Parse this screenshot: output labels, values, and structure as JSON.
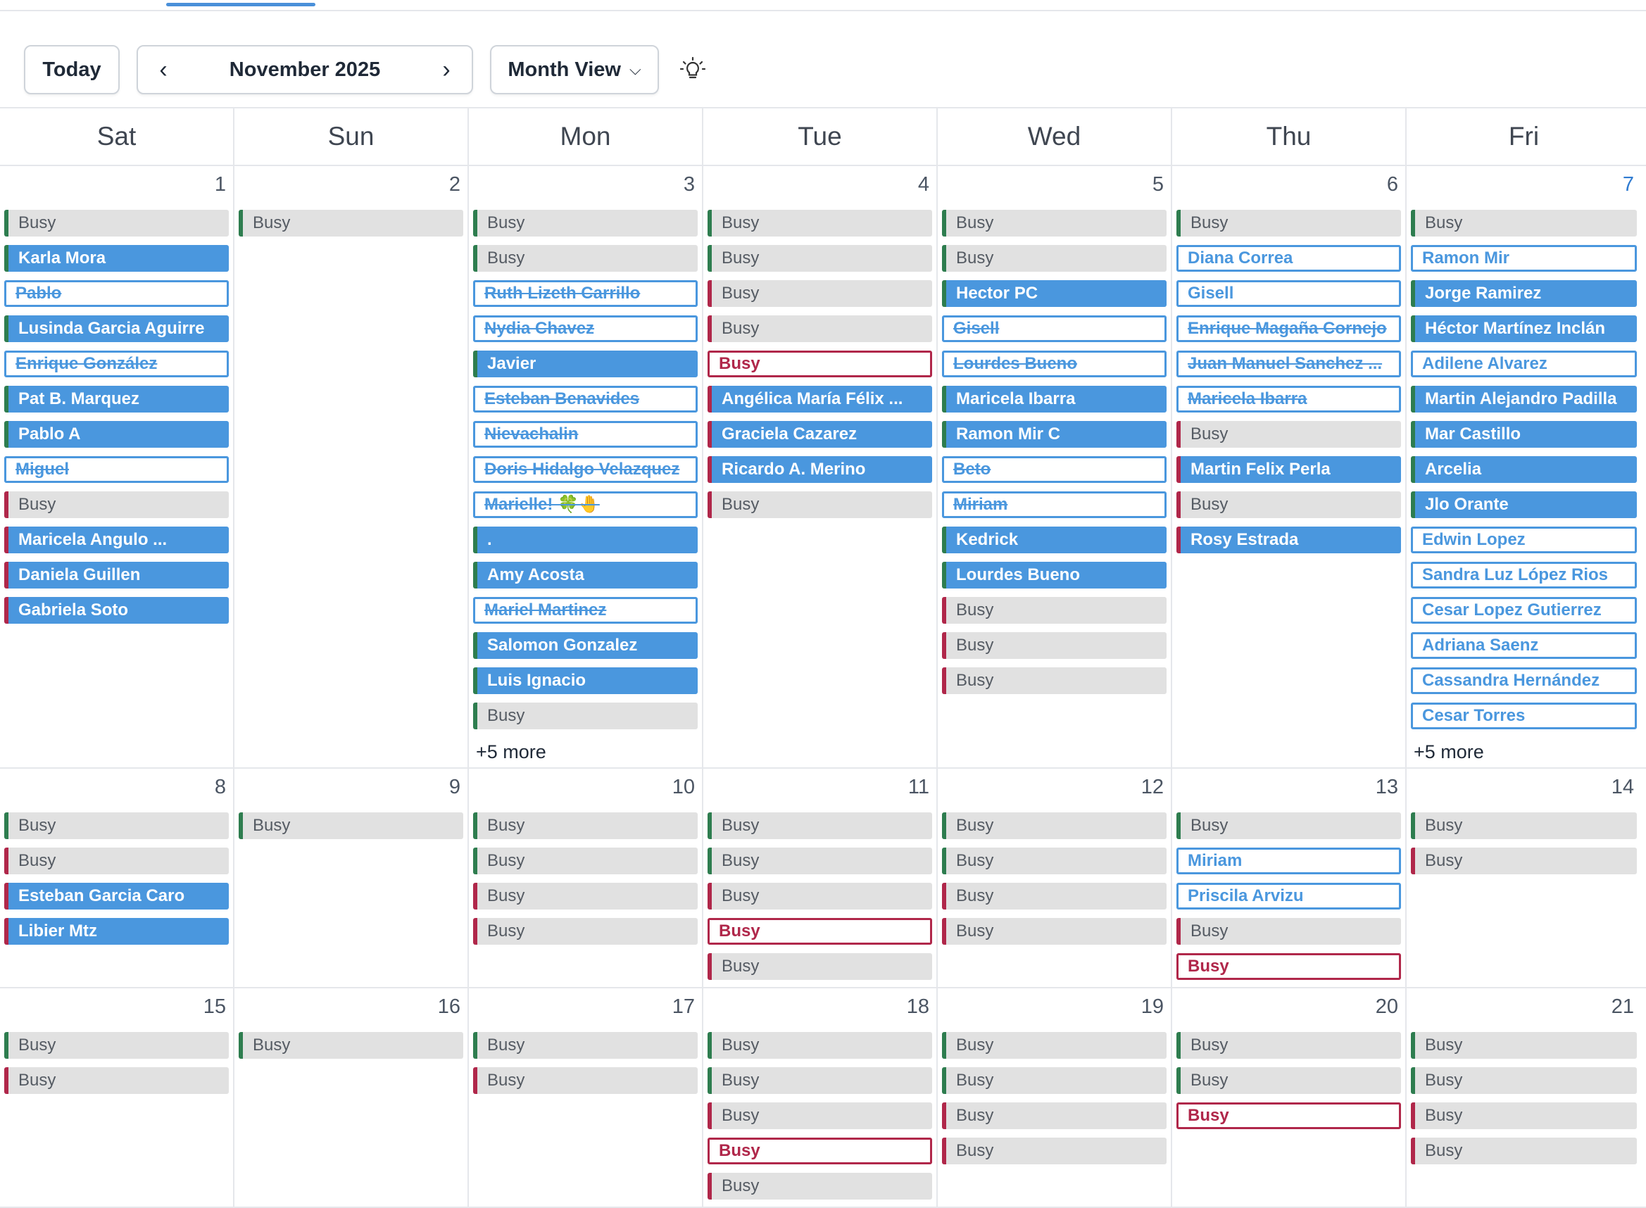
{
  "toolbar": {
    "today_label": "Today",
    "month_label": "November 2025",
    "prev_icon": "chevron-left-icon",
    "next_icon": "chevron-right-icon",
    "view_label": "Month View",
    "theme_icon": "lightbulb-icon"
  },
  "colors": {
    "accent_blue": "#4a97de",
    "busy_gray": "#e1e1e1",
    "green_bar": "#2e7d4f",
    "red_bar": "#b0274a",
    "today_blue": "#2f7bd1"
  },
  "weekdays": [
    "Sat",
    "Sun",
    "Mon",
    "Tue",
    "Wed",
    "Thu",
    "Fri"
  ],
  "weeks": [
    {
      "days": [
        {
          "num": "1",
          "events": [
            {
              "label": "Busy",
              "style": "busy",
              "bar": "green"
            },
            {
              "label": "Karla Mora",
              "style": "solid",
              "bar": "green"
            },
            {
              "label": "Pablo",
              "style": "outline",
              "struck": true
            },
            {
              "label": "Lusinda Garcia Aguirre",
              "style": "solid",
              "bar": "green"
            },
            {
              "label": "Enrique González",
              "style": "outline",
              "struck": true
            },
            {
              "label": "Pat B. Marquez",
              "style": "solid",
              "bar": "green"
            },
            {
              "label": "Pablo A",
              "style": "solid",
              "bar": "green"
            },
            {
              "label": "Miguel",
              "style": "outline",
              "struck": true
            },
            {
              "label": "Busy",
              "style": "busy",
              "bar": "red"
            },
            {
              "label": "Maricela Angulo ...",
              "style": "solid",
              "bar": "red"
            },
            {
              "label": "Daniela Guillen",
              "style": "solid",
              "bar": "red"
            },
            {
              "label": "Gabriela Soto",
              "style": "solid",
              "bar": "red"
            }
          ]
        },
        {
          "num": "2",
          "events": [
            {
              "label": "Busy",
              "style": "busy",
              "bar": "green"
            }
          ]
        },
        {
          "num": "3",
          "more": "+5 more",
          "events": [
            {
              "label": "Busy",
              "style": "busy",
              "bar": "green"
            },
            {
              "label": "Busy",
              "style": "busy",
              "bar": "green"
            },
            {
              "label": "Ruth Lizeth Carrillo",
              "style": "outline",
              "struck": true
            },
            {
              "label": "Nydia Chavez",
              "style": "outline",
              "struck": true
            },
            {
              "label": "Javier",
              "style": "solid",
              "bar": "green"
            },
            {
              "label": "Esteban Benavides",
              "style": "outline",
              "struck": true
            },
            {
              "label": "Nievachalin",
              "style": "outline",
              "struck": true
            },
            {
              "label": "Doris Hidalgo Velazquez",
              "style": "outline",
              "struck": true
            },
            {
              "label": "Marielle! 🍀🤚",
              "style": "outline",
              "struck": true
            },
            {
              "label": ".",
              "style": "solid",
              "bar": "green"
            },
            {
              "label": "Amy Acosta",
              "style": "solid",
              "bar": "green"
            },
            {
              "label": "Mariel Martinez",
              "style": "outline",
              "struck": true
            },
            {
              "label": "Salomon Gonzalez",
              "style": "solid",
              "bar": "green"
            },
            {
              "label": "Luis Ignacio",
              "style": "solid",
              "bar": "green"
            },
            {
              "label": "Busy",
              "style": "busy",
              "bar": "green"
            }
          ]
        },
        {
          "num": "4",
          "events": [
            {
              "label": "Busy",
              "style": "busy",
              "bar": "green"
            },
            {
              "label": "Busy",
              "style": "busy",
              "bar": "green"
            },
            {
              "label": "Busy",
              "style": "busy",
              "bar": "red"
            },
            {
              "label": "Busy",
              "style": "busy",
              "bar": "red"
            },
            {
              "label": "Busy",
              "style": "busy-outline"
            },
            {
              "label": "Angélica María Félix ...",
              "style": "solid",
              "bar": "red"
            },
            {
              "label": "Graciela Cazarez",
              "style": "solid",
              "bar": "red"
            },
            {
              "label": "Ricardo A. Merino",
              "style": "solid",
              "bar": "red"
            },
            {
              "label": "Busy",
              "style": "busy",
              "bar": "red"
            }
          ]
        },
        {
          "num": "5",
          "events": [
            {
              "label": "Busy",
              "style": "busy",
              "bar": "green"
            },
            {
              "label": "Busy",
              "style": "busy",
              "bar": "green"
            },
            {
              "label": "Hector PC",
              "style": "solid",
              "bar": "green"
            },
            {
              "label": "Gisell",
              "style": "outline",
              "struck": true
            },
            {
              "label": "Lourdes Bueno",
              "style": "outline",
              "struck": true
            },
            {
              "label": "Maricela Ibarra",
              "style": "solid",
              "bar": "green"
            },
            {
              "label": "Ramon Mir C",
              "style": "solid",
              "bar": "green"
            },
            {
              "label": "Beto",
              "style": "outline",
              "struck": true
            },
            {
              "label": "Miriam",
              "style": "outline",
              "struck": true
            },
            {
              "label": "Kedrick",
              "style": "solid",
              "bar": "green"
            },
            {
              "label": "Lourdes Bueno",
              "style": "solid",
              "bar": "green"
            },
            {
              "label": "Busy",
              "style": "busy",
              "bar": "red"
            },
            {
              "label": "Busy",
              "style": "busy",
              "bar": "red"
            },
            {
              "label": "Busy",
              "style": "busy",
              "bar": "red"
            }
          ]
        },
        {
          "num": "6",
          "events": [
            {
              "label": "Busy",
              "style": "busy",
              "bar": "green"
            },
            {
              "label": "Diana Correa",
              "style": "outline"
            },
            {
              "label": "Gisell",
              "style": "outline"
            },
            {
              "label": "Enrique Magaña Cornejo",
              "style": "outline",
              "struck": true
            },
            {
              "label": "Juan Manuel Sanchez ...",
              "style": "outline",
              "struck": true
            },
            {
              "label": "Maricela Ibarra",
              "style": "outline",
              "struck": true
            },
            {
              "label": "Busy",
              "style": "busy",
              "bar": "red"
            },
            {
              "label": "Martin Felix Perla",
              "style": "solid",
              "bar": "red"
            },
            {
              "label": "Busy",
              "style": "busy",
              "bar": "red"
            },
            {
              "label": "Rosy Estrada",
              "style": "solid",
              "bar": "red"
            }
          ]
        },
        {
          "num": "7",
          "today": true,
          "more": "+5 more",
          "events": [
            {
              "label": "Busy",
              "style": "busy",
              "bar": "green"
            },
            {
              "label": "Ramon Mir",
              "style": "outline"
            },
            {
              "label": "Jorge Ramirez",
              "style": "solid",
              "bar": "green"
            },
            {
              "label": "Héctor Martínez Inclán",
              "style": "solid",
              "bar": "green"
            },
            {
              "label": "Adilene Alvarez",
              "style": "outline"
            },
            {
              "label": "Martin Alejandro Padilla",
              "style": "solid",
              "bar": "green"
            },
            {
              "label": "Mar Castillo",
              "style": "solid",
              "bar": "green"
            },
            {
              "label": "Arcelia",
              "style": "solid",
              "bar": "green"
            },
            {
              "label": "Jlo Orante",
              "style": "solid",
              "bar": "green"
            },
            {
              "label": "Edwin Lopez",
              "style": "outline"
            },
            {
              "label": "Sandra Luz López Rios",
              "style": "outline"
            },
            {
              "label": "Cesar Lopez Gutierrez",
              "style": "outline"
            },
            {
              "label": "Adriana Saenz",
              "style": "outline"
            },
            {
              "label": "Cassandra Hernández",
              "style": "outline"
            },
            {
              "label": "Cesar Torres",
              "style": "outline"
            }
          ]
        }
      ]
    },
    {
      "days": [
        {
          "num": "8",
          "events": [
            {
              "label": "Busy",
              "style": "busy",
              "bar": "green"
            },
            {
              "label": "Busy",
              "style": "busy",
              "bar": "red"
            },
            {
              "label": "Esteban Garcia Caro",
              "style": "solid",
              "bar": "red"
            },
            {
              "label": "Libier Mtz",
              "style": "solid",
              "bar": "red"
            }
          ]
        },
        {
          "num": "9",
          "events": [
            {
              "label": "Busy",
              "style": "busy",
              "bar": "green"
            }
          ]
        },
        {
          "num": "10",
          "events": [
            {
              "label": "Busy",
              "style": "busy",
              "bar": "green"
            },
            {
              "label": "Busy",
              "style": "busy",
              "bar": "green"
            },
            {
              "label": "Busy",
              "style": "busy",
              "bar": "red"
            },
            {
              "label": "Busy",
              "style": "busy",
              "bar": "red"
            }
          ]
        },
        {
          "num": "11",
          "events": [
            {
              "label": "Busy",
              "style": "busy",
              "bar": "green"
            },
            {
              "label": "Busy",
              "style": "busy",
              "bar": "green"
            },
            {
              "label": "Busy",
              "style": "busy",
              "bar": "red"
            },
            {
              "label": "Busy",
              "style": "busy-outline"
            },
            {
              "label": "Busy",
              "style": "busy",
              "bar": "red"
            }
          ]
        },
        {
          "num": "12",
          "events": [
            {
              "label": "Busy",
              "style": "busy",
              "bar": "green"
            },
            {
              "label": "Busy",
              "style": "busy",
              "bar": "green"
            },
            {
              "label": "Busy",
              "style": "busy",
              "bar": "red"
            },
            {
              "label": "Busy",
              "style": "busy",
              "bar": "red"
            }
          ]
        },
        {
          "num": "13",
          "events": [
            {
              "label": "Busy",
              "style": "busy",
              "bar": "green"
            },
            {
              "label": "Miriam",
              "style": "outline"
            },
            {
              "label": "Priscila Arvizu",
              "style": "outline"
            },
            {
              "label": "Busy",
              "style": "busy",
              "bar": "red"
            },
            {
              "label": "Busy",
              "style": "busy-outline"
            }
          ]
        },
        {
          "num": "14",
          "events": [
            {
              "label": "Busy",
              "style": "busy",
              "bar": "green"
            },
            {
              "label": "Busy",
              "style": "busy",
              "bar": "red"
            }
          ]
        }
      ]
    },
    {
      "days": [
        {
          "num": "15",
          "events": [
            {
              "label": "Busy",
              "style": "busy",
              "bar": "green"
            },
            {
              "label": "Busy",
              "style": "busy",
              "bar": "red"
            }
          ]
        },
        {
          "num": "16",
          "events": [
            {
              "label": "Busy",
              "style": "busy",
              "bar": "green"
            }
          ]
        },
        {
          "num": "17",
          "events": [
            {
              "label": "Busy",
              "style": "busy",
              "bar": "green"
            },
            {
              "label": "Busy",
              "style": "busy",
              "bar": "red"
            }
          ]
        },
        {
          "num": "18",
          "events": [
            {
              "label": "Busy",
              "style": "busy",
              "bar": "green"
            },
            {
              "label": "Busy",
              "style": "busy",
              "bar": "green"
            },
            {
              "label": "Busy",
              "style": "busy",
              "bar": "red"
            },
            {
              "label": "Busy",
              "style": "busy-outline"
            },
            {
              "label": "Busy",
              "style": "busy",
              "bar": "red"
            }
          ]
        },
        {
          "num": "19",
          "events": [
            {
              "label": "Busy",
              "style": "busy",
              "bar": "green"
            },
            {
              "label": "Busy",
              "style": "busy",
              "bar": "green"
            },
            {
              "label": "Busy",
              "style": "busy",
              "bar": "red"
            },
            {
              "label": "Busy",
              "style": "busy",
              "bar": "red"
            }
          ]
        },
        {
          "num": "20",
          "events": [
            {
              "label": "Busy",
              "style": "busy",
              "bar": "green"
            },
            {
              "label": "Busy",
              "style": "busy",
              "bar": "green"
            },
            {
              "label": "Busy",
              "style": "busy-outline"
            }
          ]
        },
        {
          "num": "21",
          "events": [
            {
              "label": "Busy",
              "style": "busy",
              "bar": "green"
            },
            {
              "label": "Busy",
              "style": "busy",
              "bar": "green"
            },
            {
              "label": "Busy",
              "style": "busy",
              "bar": "red"
            },
            {
              "label": "Busy",
              "style": "busy",
              "bar": "red"
            }
          ]
        }
      ]
    }
  ]
}
